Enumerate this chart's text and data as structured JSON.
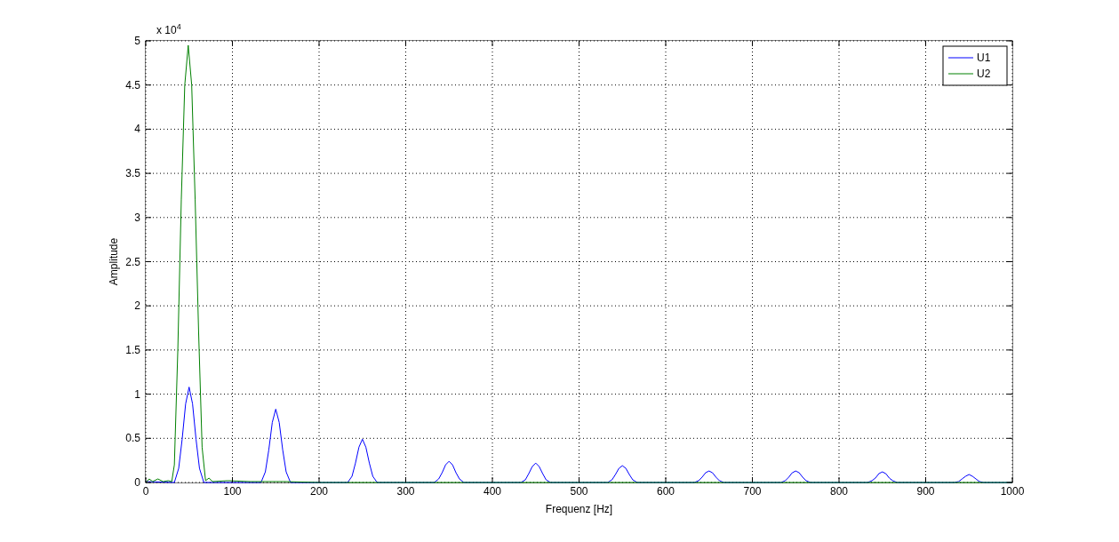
{
  "chart_data": {
    "type": "line",
    "xlabel": "Frequenz [Hz]",
    "ylabel": "Amplitude",
    "annotations": [
      "x 10$^{4}$"
    ],
    "xlim": [
      0,
      1000
    ],
    "xticks": [
      0,
      100,
      200,
      300,
      400,
      500,
      600,
      700,
      800,
      900,
      1000
    ],
    "ylim": [
      0,
      5
    ],
    "yticks": [
      0,
      0.5,
      1,
      1.5,
      2,
      2.5,
      3,
      3.5,
      4,
      4.5,
      5
    ],
    "grid": true,
    "legend": "top right",
    "marker": "none",
    "line_style": "solid",
    "series": [
      {
        "name": "U1",
        "color": "#0000ff",
        "x": [
          0,
          33,
          38,
          42,
          46,
          50,
          54,
          58,
          62,
          67,
          133,
          138,
          142,
          146,
          150,
          154,
          158,
          162,
          167,
          233,
          238,
          242,
          246,
          250,
          254,
          258,
          262,
          267,
          333,
          338,
          342,
          346,
          350,
          354,
          358,
          362,
          367,
          433,
          438,
          442,
          446,
          450,
          454,
          458,
          462,
          467,
          533,
          538,
          542,
          546,
          550,
          554,
          558,
          562,
          567,
          633,
          638,
          642,
          646,
          650,
          654,
          658,
          662,
          667,
          733,
          738,
          742,
          746,
          750,
          754,
          758,
          762,
          767,
          833,
          838,
          842,
          846,
          850,
          854,
          858,
          862,
          867,
          933,
          938,
          942,
          946,
          950,
          954,
          958,
          962,
          967,
          1000
        ],
        "values": [
          0.01,
          0,
          0.16,
          0.49,
          0.89,
          1.08,
          0.89,
          0.49,
          0.16,
          0,
          0,
          0.12,
          0.37,
          0.68,
          0.83,
          0.68,
          0.37,
          0.12,
          0,
          0,
          0.07,
          0.22,
          0.4,
          0.49,
          0.4,
          0.22,
          0.07,
          0,
          0,
          0.04,
          0.11,
          0.2,
          0.24,
          0.2,
          0.11,
          0.04,
          0,
          0,
          0.03,
          0.1,
          0.18,
          0.22,
          0.18,
          0.1,
          0.03,
          0,
          0,
          0.03,
          0.09,
          0.16,
          0.19,
          0.16,
          0.09,
          0.03,
          0,
          0,
          0.02,
          0.06,
          0.11,
          0.13,
          0.11,
          0.06,
          0.02,
          0,
          0,
          0.02,
          0.06,
          0.11,
          0.13,
          0.11,
          0.06,
          0.02,
          0,
          0,
          0.02,
          0.05,
          0.1,
          0.12,
          0.1,
          0.05,
          0.02,
          0,
          0,
          0.01,
          0.04,
          0.07,
          0.09,
          0.07,
          0.04,
          0.01,
          0,
          0
        ]
      },
      {
        "name": "U2",
        "color": "#008000",
        "x": [
          0,
          4,
          8,
          14,
          20,
          26,
          30,
          33,
          37,
          41,
          45,
          49,
          53,
          57,
          61,
          65,
          69,
          73,
          77,
          95,
          120,
          160,
          200,
          1000
        ],
        "values": [
          0,
          0.04,
          0.01,
          0.04,
          0.01,
          0.02,
          0.01,
          0.2,
          1.5,
          3.2,
          4.5,
          4.95,
          4.5,
          3.2,
          1.7,
          0.4,
          0.02,
          0.05,
          0.01,
          0.02,
          0.01,
          0.01,
          0,
          0
        ]
      }
    ]
  }
}
